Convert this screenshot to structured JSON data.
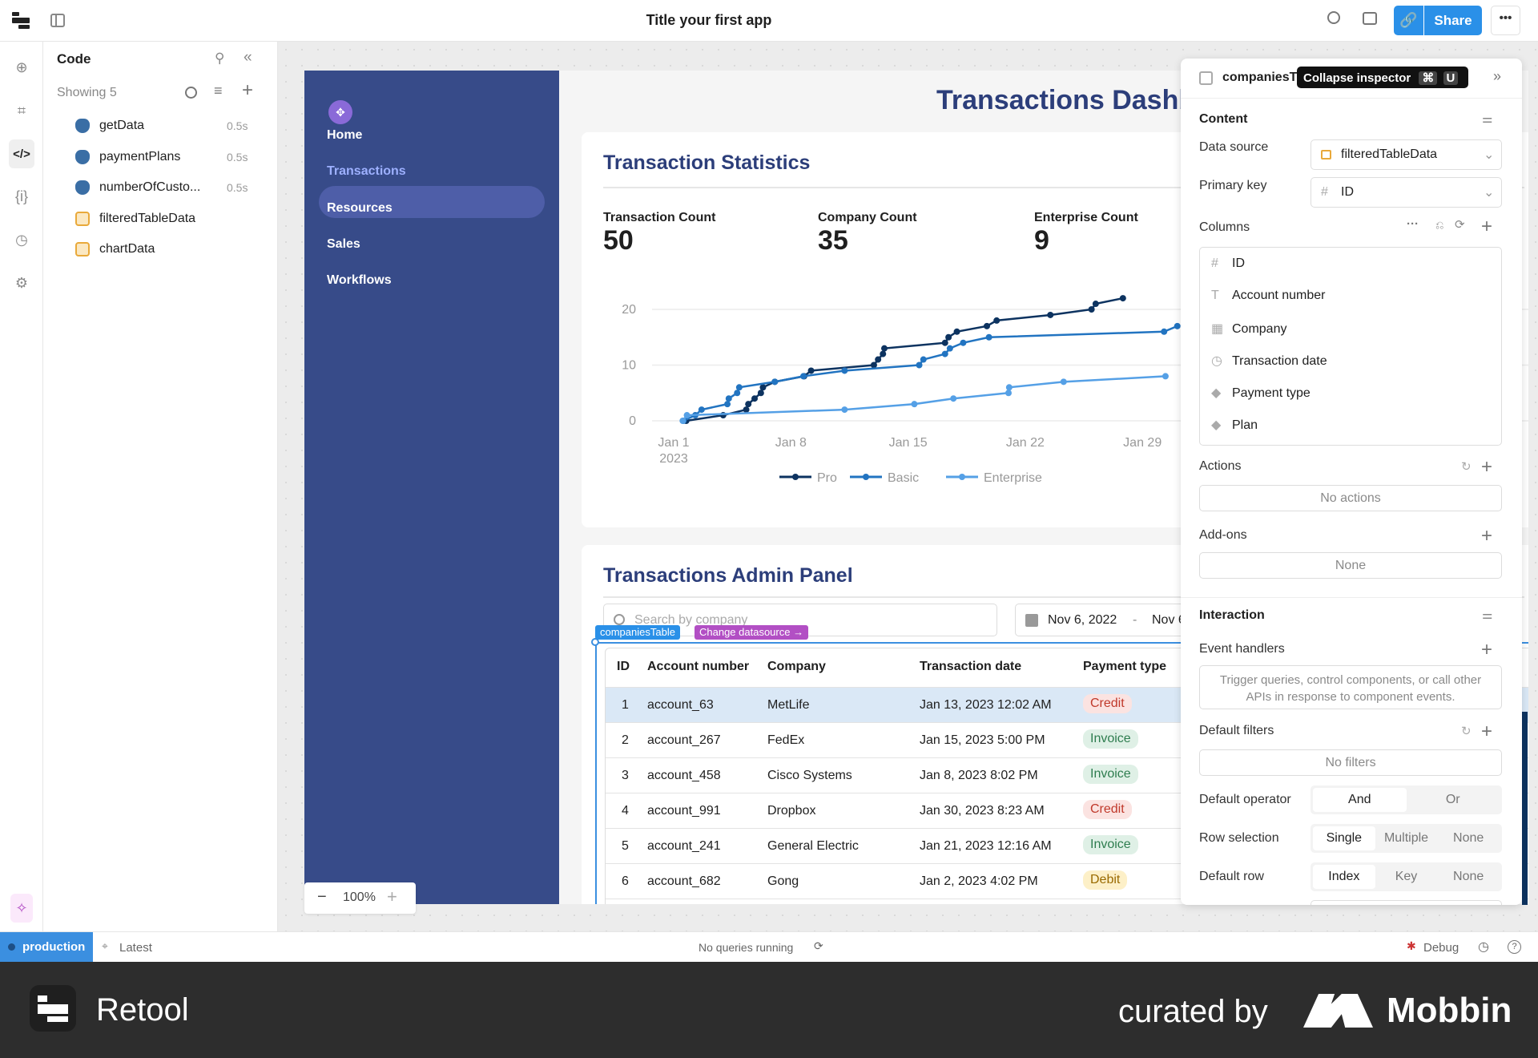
{
  "topbar": {
    "title": "Title your first app",
    "share_label": "Share"
  },
  "code_panel": {
    "title": "Code",
    "showing": "Showing 5",
    "items": [
      {
        "name": "getData",
        "time": "0.5s",
        "type": "postgres"
      },
      {
        "name": "paymentPlans",
        "time": "0.5s",
        "type": "postgres"
      },
      {
        "name": "numberOfCusto...",
        "time": "0.5s",
        "type": "postgres"
      },
      {
        "name": "filteredTableData",
        "type": "transformer"
      },
      {
        "name": "chartData",
        "type": "transformer"
      }
    ]
  },
  "app": {
    "nav": [
      "Home",
      "Transactions",
      "Resources",
      "Sales",
      "Workflows"
    ],
    "active_nav": "Transactions",
    "title": "Transactions Dashb",
    "stats_title": "Transaction Statistics",
    "stats": [
      {
        "label": "Transaction Count",
        "value": "50"
      },
      {
        "label": "Company Count",
        "value": "35"
      },
      {
        "label": "Enterprise Count",
        "value": "9"
      }
    ],
    "admin_title": "Transactions Admin Panel",
    "search_placeholder": "Search by company",
    "date_start": "Nov 6, 2022",
    "date_sep": "-",
    "date_end": "Nov 6",
    "table_tag": "companiesTable",
    "datasource_tag": "Change datasource →",
    "zoom": "100%"
  },
  "table": {
    "headers": [
      "ID",
      "Account number",
      "Company",
      "Transaction date",
      "Payment type"
    ],
    "rows": [
      {
        "id": "1",
        "account": "account_63",
        "company": "MetLife",
        "date": "Jan 13, 2023 12:02 AM",
        "payment": "Credit"
      },
      {
        "id": "2",
        "account": "account_267",
        "company": "FedEx",
        "date": "Jan 15, 2023 5:00 PM",
        "payment": "Invoice"
      },
      {
        "id": "3",
        "account": "account_458",
        "company": "Cisco Systems",
        "date": "Jan 8, 2023 8:02 PM",
        "payment": "Invoice"
      },
      {
        "id": "4",
        "account": "account_991",
        "company": "Dropbox",
        "date": "Jan 30, 2023 8:23 AM",
        "payment": "Credit"
      },
      {
        "id": "5",
        "account": "account_241",
        "company": "General Electric",
        "date": "Jan 21, 2023 12:16 AM",
        "payment": "Invoice"
      },
      {
        "id": "6",
        "account": "account_682",
        "company": "Gong",
        "date": "Jan 2, 2023 4:02 PM",
        "payment": "Debit"
      }
    ],
    "selected_row": "1",
    "pill_colors": {
      "Credit": {
        "bg": "#fbe3e1",
        "fg": "#c0392b"
      },
      "Invoice": {
        "bg": "#dff0e6",
        "fg": "#2e7d4f"
      },
      "Debit": {
        "bg": "#fdf0c8",
        "fg": "#9a6a00"
      }
    }
  },
  "chart_data": {
    "type": "line",
    "x_ticks": [
      "Jan 1\n2023",
      "Jan 8",
      "Jan 15",
      "Jan 22",
      "Jan 29"
    ],
    "y_ticks": [
      "0",
      "10",
      "20"
    ],
    "ylim": [
      0,
      22
    ],
    "grid": true,
    "legend": "bottom",
    "series": [
      {
        "name": "Pro",
        "color": "#0d3360",
        "x": [
          "2023-01-01T18:00",
          "2023-01-03T23:00",
          "2023-01-05T08:00",
          "2023-01-05T11:00",
          "2023-01-05T20:00",
          "2023-01-06T05:00",
          "2023-01-06T08:00",
          "2023-01-07T01:00",
          "2023-01-08T19:00",
          "2023-01-09T05:00",
          "2023-01-12T23:00",
          "2023-01-13T05:00",
          "2023-01-13T12:00",
          "2023-01-13T14:00",
          "2023-01-17T05:00",
          "2023-01-17T10:00",
          "2023-01-17T22:00",
          "2023-01-19T17:00",
          "2023-01-20T07:00",
          "2023-01-23T12:00",
          "2023-01-25T23:00",
          "2023-01-26T05:00",
          "2023-01-27T20:00"
        ],
        "y": [
          0,
          1,
          2,
          3,
          4,
          5,
          6,
          7,
          8,
          9,
          10,
          11,
          12,
          13,
          14,
          15,
          16,
          17,
          18,
          19,
          20,
          21,
          22
        ]
      },
      {
        "name": "Basic",
        "color": "#2274c1",
        "x": [
          "2023-01-01T14:00",
          "2023-01-02T07:00",
          "2023-01-02T16:00",
          "2023-01-04T05:00",
          "2023-01-04T07:00",
          "2023-01-04T19:00",
          "2023-01-04T22:00",
          "2023-01-07T01:00",
          "2023-01-08T18:00",
          "2023-01-11T05:00",
          "2023-01-15T16:00",
          "2023-01-15T22:00",
          "2023-01-17T05:00",
          "2023-01-17T12:00",
          "2023-01-18T07:00",
          "2023-01-19T20:00",
          "2023-01-30T07:00",
          "2023-01-31T02:00"
        ],
        "y": [
          0,
          1,
          2,
          3,
          4,
          5,
          6,
          7,
          8,
          9,
          10,
          11,
          12,
          13,
          14,
          15,
          16,
          17
        ]
      },
      {
        "name": "Enterprise",
        "color": "#55a0e6",
        "x": [
          "2023-01-01T13:00",
          "2023-01-01T19:00",
          "2023-01-11T05:00",
          "2023-01-15T09:00",
          "2023-01-17T17:00",
          "2023-01-21T00:00",
          "2023-01-21T01:00",
          "2023-01-24T07:00",
          "2023-01-30T09:00"
        ],
        "y": [
          0,
          1,
          2,
          3,
          4,
          5,
          6,
          7,
          8
        ]
      }
    ]
  },
  "inspector": {
    "component": "companiesT",
    "tooltip": "Collapse inspector",
    "tooltip_keys": [
      "⌘",
      "U"
    ],
    "content": "Content",
    "data_source_label": "Data source",
    "data_source": "filteredTableData",
    "primary_key_label": "Primary key",
    "primary_key": "ID",
    "columns_label": "Columns",
    "columns": [
      {
        "icon": "#",
        "name": "ID"
      },
      {
        "icon": "T",
        "name": "Account number"
      },
      {
        "icon": "▦",
        "name": "Company"
      },
      {
        "icon": "◷",
        "name": "Transaction date"
      },
      {
        "icon": "◆",
        "name": "Payment type"
      },
      {
        "icon": "◆",
        "name": "Plan"
      }
    ],
    "actions_label": "Actions",
    "actions_empty": "No actions",
    "addons_label": "Add-ons",
    "addons_empty": "None",
    "interaction": "Interaction",
    "event_handlers_label": "Event handlers",
    "event_handlers_hint": "Trigger queries, control components, or call other APIs in response to component events.",
    "default_filters_label": "Default filters",
    "filters_empty": "No filters",
    "default_operator_label": "Default operator",
    "operator_options": [
      "And",
      "Or"
    ],
    "operator_selected": "And",
    "row_selection_label": "Row selection",
    "row_selection_options": [
      "Single",
      "Multiple",
      "None"
    ],
    "row_selection_selected": "Single",
    "default_row_label": "Default row",
    "default_row_options": [
      "Index",
      "Key",
      "None"
    ],
    "default_row_selected": "Index"
  },
  "status": {
    "env": "production",
    "version": "Latest",
    "queries": "No queries running",
    "debug": "Debug"
  },
  "footer": {
    "brand": "Retool",
    "curated": "curated by",
    "mobbin": "Mobbin"
  }
}
